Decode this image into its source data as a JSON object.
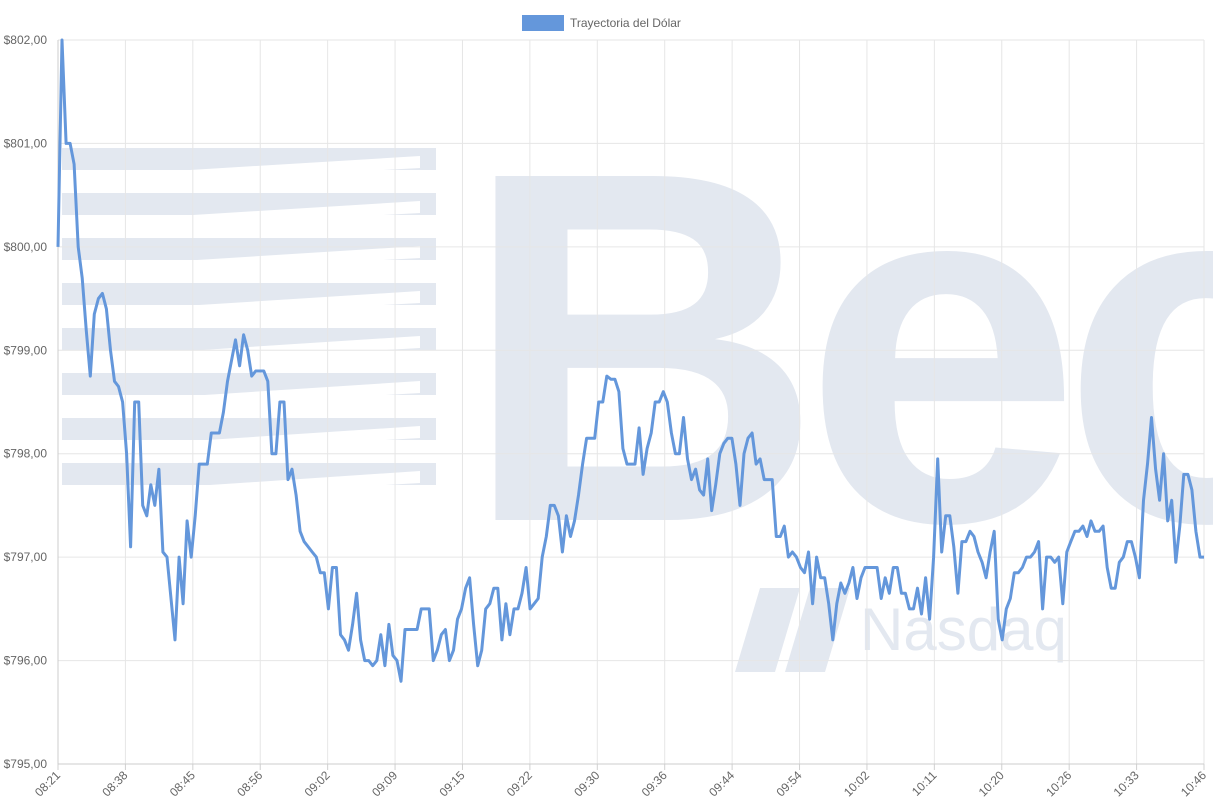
{
  "colors": {
    "line": "#6497db",
    "grid": "#e6e6e6",
    "axis_text": "#666666",
    "watermark": "#e3e8f0"
  },
  "watermark": {
    "text": "Bec",
    "sub_text": "Nasdaq",
    "icon": "bolsa-logo-stripes"
  },
  "chart_data": {
    "type": "line",
    "title": "",
    "xlabel": "",
    "ylabel": "",
    "legend_position": "top-center",
    "grid": true,
    "ylim": [
      795,
      802
    ],
    "y_ticks": [
      "$795,00",
      "$796,00",
      "$797,00",
      "$798,00",
      "$799,00",
      "$800,00",
      "$801,00",
      "$802,00"
    ],
    "x_tick_labels": [
      "08:21",
      "08:38",
      "08:45",
      "08:56",
      "09:02",
      "09:09",
      "09:15",
      "09:22",
      "09:30",
      "09:36",
      "09:44",
      "09:54",
      "10:02",
      "10:11",
      "10:20",
      "10:26",
      "10:33",
      "10:46"
    ],
    "series": [
      {
        "name": "Trayectoria del Dólar",
        "values": [
          800.0,
          802.0,
          801.0,
          801.0,
          800.8,
          800.0,
          799.7,
          799.2,
          798.75,
          799.35,
          799.5,
          799.55,
          799.4,
          799.0,
          798.7,
          798.65,
          798.5,
          798.0,
          797.1,
          798.5,
          798.5,
          797.5,
          797.4,
          797.7,
          797.5,
          797.85,
          797.05,
          797.0,
          796.6,
          796.2,
          797.0,
          796.55,
          797.35,
          797.0,
          797.4,
          797.9,
          797.9,
          797.9,
          798.2,
          798.2,
          798.2,
          798.4,
          798.7,
          798.9,
          799.1,
          798.85,
          799.15,
          799.0,
          798.75,
          798.8,
          798.8,
          798.8,
          798.7,
          798.0,
          798.0,
          798.5,
          798.5,
          797.75,
          797.85,
          797.6,
          797.25,
          797.15,
          797.1,
          797.05,
          797.0,
          796.85,
          796.85,
          796.5,
          796.9,
          796.9,
          796.25,
          796.2,
          796.1,
          796.35,
          796.65,
          796.2,
          796.0,
          796.0,
          795.95,
          796.0,
          796.25,
          795.95,
          796.35,
          796.05,
          796.0,
          795.8,
          796.3,
          796.3,
          796.3,
          796.3,
          796.5,
          796.5,
          796.5,
          796.0,
          796.1,
          796.25,
          796.3,
          796.0,
          796.1,
          796.4,
          796.5,
          796.7,
          796.8,
          796.35,
          795.95,
          796.1,
          796.5,
          796.55,
          796.7,
          796.7,
          796.2,
          796.55,
          796.25,
          796.5,
          796.5,
          796.65,
          796.9,
          796.5,
          796.55,
          796.6,
          797.0,
          797.2,
          797.5,
          797.5,
          797.4,
          797.05,
          797.4,
          797.2,
          797.35,
          797.6,
          797.9,
          798.15,
          798.15,
          798.15,
          798.5,
          798.5,
          798.75,
          798.72,
          798.72,
          798.6,
          798.05,
          797.9,
          797.9,
          797.9,
          798.25,
          797.8,
          798.05,
          798.2,
          798.5,
          798.5,
          798.6,
          798.5,
          798.2,
          798.0,
          798.0,
          798.35,
          797.95,
          797.75,
          797.85,
          797.65,
          797.6,
          797.95,
          797.45,
          797.7,
          798.0,
          798.1,
          798.15,
          798.15,
          797.9,
          797.5,
          798.0,
          798.15,
          798.2,
          797.9,
          797.95,
          797.75,
          797.75,
          797.75,
          797.2,
          797.2,
          797.3,
          797.0,
          797.05,
          797.0,
          796.9,
          796.85,
          797.05,
          796.55,
          797.0,
          796.8,
          796.8,
          796.55,
          796.2,
          796.55,
          796.75,
          796.65,
          796.75,
          796.9,
          796.6,
          796.8,
          796.9,
          796.9,
          796.9,
          796.9,
          796.6,
          796.8,
          796.65,
          796.9,
          796.9,
          796.65,
          796.65,
          796.5,
          796.5,
          796.7,
          796.45,
          796.8,
          796.4,
          797.0,
          797.95,
          797.05,
          797.4,
          797.4,
          797.1,
          796.65,
          797.15,
          797.15,
          797.25,
          797.2,
          797.05,
          796.95,
          796.8,
          797.05,
          797.25,
          796.4,
          796.2,
          796.5,
          796.6,
          796.85,
          796.85,
          796.9,
          797.0,
          797.0,
          797.05,
          797.15,
          796.5,
          797.0,
          797.0,
          796.95,
          797.0,
          796.55,
          797.05,
          797.15,
          797.25,
          797.25,
          797.3,
          797.2,
          797.35,
          797.25,
          797.25,
          797.3,
          796.9,
          796.7,
          796.7,
          796.95,
          797.0,
          797.15,
          797.15,
          797.0,
          796.8,
          797.55,
          797.9,
          798.35,
          797.85,
          797.55,
          798.0,
          797.35,
          797.55,
          796.95,
          797.3,
          797.8,
          797.8,
          797.65,
          797.25,
          797.0,
          797.0
        ]
      }
    ]
  }
}
